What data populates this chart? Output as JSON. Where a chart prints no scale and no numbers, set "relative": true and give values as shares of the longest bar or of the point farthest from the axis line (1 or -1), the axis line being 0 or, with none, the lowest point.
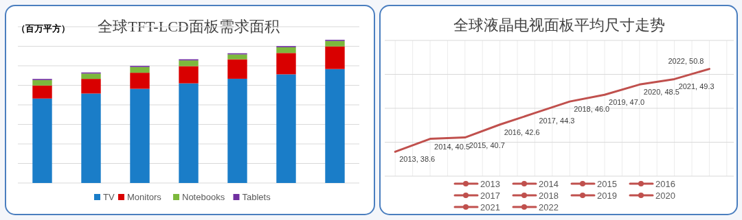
{
  "chart_data": [
    {
      "type": "bar",
      "title": "全球TFT-LCD面板需求面积",
      "ylabel": "（百万平方）",
      "relative": true,
      "stacked": true,
      "grid": "y",
      "legend": "bottom",
      "categories": [
        null,
        null,
        null,
        null,
        null,
        null,
        null
      ],
      "series": [
        {
          "name": "TV",
          "color": "#1a7dc8",
          "values": [
            0.59,
            0.625,
            0.658,
            0.696,
            0.728,
            0.759,
            0.796
          ]
        },
        {
          "name": "Monitors",
          "color": "#d90000",
          "values": [
            0.091,
            0.102,
            0.112,
            0.12,
            0.136,
            0.149,
            0.158
          ]
        },
        {
          "name": "Notebooks",
          "color": "#7cb83c",
          "values": [
            0.038,
            0.037,
            0.04,
            0.04,
            0.034,
            0.04,
            0.038
          ]
        },
        {
          "name": "Tablets",
          "color": "#7030a0",
          "values": [
            0.008,
            0.008,
            0.008,
            0.008,
            0.008,
            0.008,
            0.008
          ]
        }
      ]
    },
    {
      "type": "line",
      "title": "全球液晶电视面板平均尺寸走势",
      "grid": true,
      "categories": [
        null,
        null,
        null,
        null,
        null,
        null,
        null,
        null,
        null,
        null
      ],
      "annotations": [
        "2013",
        "2014",
        "2015",
        "2016",
        "2017",
        "2018",
        "2019",
        "2020",
        "2021",
        "2022"
      ],
      "ylim": [
        35,
        55
      ],
      "yticks": [
        {
          "value": 35,
          "label": null
        },
        {
          "value": 40,
          "label": null
        },
        {
          "value": 45,
          "label": null
        },
        {
          "value": 50,
          "label": null
        },
        {
          "value": 55,
          "label": null
        }
      ],
      "series": [
        {
          "color": "#c0504d",
          "values": [
            38.6,
            40.5,
            40.7,
            42.6,
            44.3,
            46.0,
            47.0,
            48.5,
            49.3,
            50.8
          ],
          "value_labels": [
            "2013, 38.6",
            "2014, 40.5",
            "2015, 40.7",
            "2016, 42.6",
            "2017, 44.3",
            "2018, 46.0",
            "2019, 47.0",
            "2020, 48.5",
            "2021, 49.3",
            "2022, 50.8"
          ]
        }
      ]
    }
  ]
}
